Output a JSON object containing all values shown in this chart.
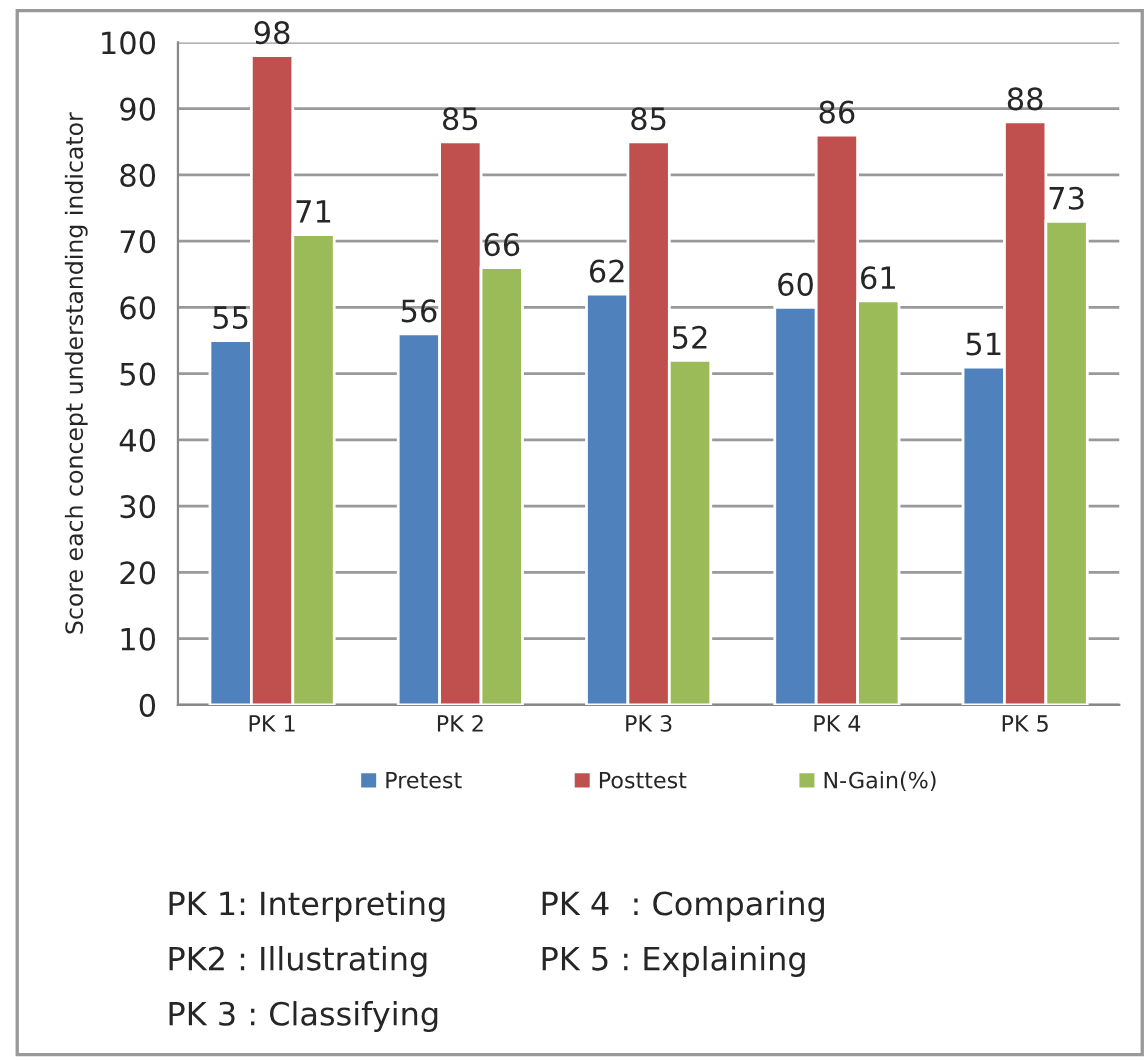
{
  "chart_data": {
    "type": "bar",
    "ylabel": "Score each concept understanding indicator",
    "categories": [
      "PK 1",
      "PK 2",
      "PK 3",
      "PK 4",
      "PK 5"
    ],
    "series": [
      {
        "name": "Pretest",
        "color": "#4f81bd",
        "values": [
          55,
          56,
          62,
          60,
          51
        ]
      },
      {
        "name": "Posttest",
        "color": "#c0504d",
        "values": [
          98,
          85,
          85,
          86,
          88
        ]
      },
      {
        "name": "N-Gain(%)",
        "color": "#9bbb59",
        "values": [
          71,
          66,
          52,
          61,
          73
        ]
      }
    ],
    "ylim": [
      0,
      100
    ],
    "yticks": [
      0,
      10,
      20,
      30,
      40,
      50,
      60,
      70,
      80,
      90,
      100
    ],
    "grid": "y",
    "legend": "bottom",
    "data_labels": true,
    "annotations": [
      "PK 1: Interpreting",
      "PK2 : Illustrating",
      "PK 3 : Classifying",
      "PK 4  : Comparing",
      "PK 5 : Explaining"
    ]
  }
}
